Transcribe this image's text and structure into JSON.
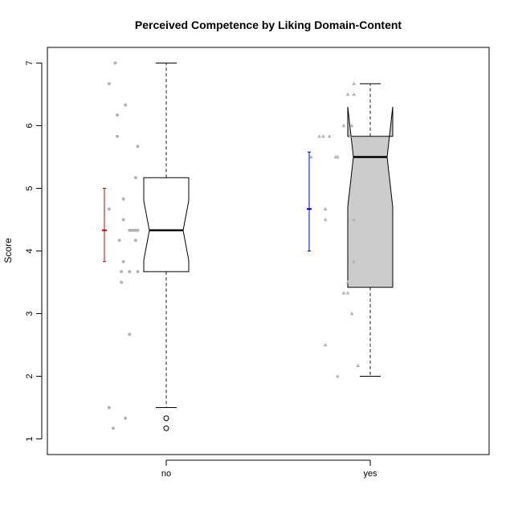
{
  "chart_data": {
    "type": "boxplot",
    "title": "Perceived Competence by Liking Domain-Content",
    "xlabel": "",
    "ylabel": "Score",
    "categories": [
      "no",
      "yes"
    ],
    "ylim": [
      0.75,
      7.25
    ],
    "yticks": [
      1,
      2,
      3,
      4,
      5,
      6,
      7
    ],
    "grid": false,
    "notched": true,
    "colors": {
      "no_fill": "#ffffff",
      "yes_fill": "#cccccc",
      "no_ci": "#cc0000",
      "yes_ci": "#0000cc",
      "points": "#b3b3b3",
      "box_border": "#000000",
      "whisker": "#666666"
    },
    "groups": [
      {
        "category": "no",
        "box": {
          "q1": 3.67,
          "median": 4.33,
          "q3": 5.17,
          "whisker_low": 1.5,
          "whisker_high": 7.0,
          "notch_low": 3.85,
          "notch_high": 4.8
        },
        "outliers": [
          1.33,
          1.17
        ],
        "mean_ci": {
          "mean": 4.33,
          "low": 3.83,
          "high": 5.0
        },
        "points": [
          {
            "offset": -0.25,
            "y": 7.0
          },
          {
            "offset": -0.28,
            "y": 6.67
          },
          {
            "offset": -0.24,
            "y": 6.17
          },
          {
            "offset": -0.24,
            "y": 5.83
          },
          {
            "offset": -0.2,
            "y": 6.33
          },
          {
            "offset": -0.14,
            "y": 5.67
          },
          {
            "offset": -0.15,
            "y": 5.17
          },
          {
            "offset": -0.28,
            "y": 4.67
          },
          {
            "offset": -0.21,
            "y": 4.83
          },
          {
            "offset": -0.21,
            "y": 4.5
          },
          {
            "offset": -0.23,
            "y": 4.17
          },
          {
            "offset": -0.18,
            "y": 4.33
          },
          {
            "offset": -0.17,
            "y": 4.33
          },
          {
            "offset": -0.16,
            "y": 4.33
          },
          {
            "offset": -0.15,
            "y": 4.33
          },
          {
            "offset": -0.14,
            "y": 4.33
          },
          {
            "offset": -0.15,
            "y": 4.17
          },
          {
            "offset": -0.21,
            "y": 3.83
          },
          {
            "offset": -0.22,
            "y": 3.67
          },
          {
            "offset": -0.18,
            "y": 3.67
          },
          {
            "offset": -0.14,
            "y": 3.67
          },
          {
            "offset": -0.22,
            "y": 3.5
          },
          {
            "offset": -0.18,
            "y": 2.67
          },
          {
            "offset": -0.28,
            "y": 1.5
          },
          {
            "offset": -0.2,
            "y": 1.33
          },
          {
            "offset": -0.26,
            "y": 1.17
          }
        ]
      },
      {
        "category": "yes",
        "box": {
          "q1": 3.42,
          "median": 5.5,
          "q3": 5.83,
          "whisker_low": 2.0,
          "whisker_high": 6.67,
          "notch_low": 4.7,
          "notch_high": 6.3
        },
        "outliers": [],
        "mean_ci": {
          "mean": 4.67,
          "low": 4.0,
          "high": 5.58
        },
        "points": [
          {
            "offset": -0.08,
            "y": 6.67
          },
          {
            "offset": -0.11,
            "y": 6.5
          },
          {
            "offset": -0.08,
            "y": 6.5
          },
          {
            "offset": -0.13,
            "y": 6.0
          },
          {
            "offset": -0.09,
            "y": 6.0
          },
          {
            "offset": -0.25,
            "y": 5.83
          },
          {
            "offset": -0.23,
            "y": 5.83
          },
          {
            "offset": -0.2,
            "y": 5.83
          },
          {
            "offset": -0.1,
            "y": 5.83
          },
          {
            "offset": -0.29,
            "y": 5.5
          },
          {
            "offset": -0.17,
            "y": 5.5
          },
          {
            "offset": -0.16,
            "y": 5.5
          },
          {
            "offset": -0.22,
            "y": 4.67
          },
          {
            "offset": -0.22,
            "y": 4.5
          },
          {
            "offset": -0.08,
            "y": 4.5
          },
          {
            "offset": -0.08,
            "y": 3.83
          },
          {
            "offset": -0.11,
            "y": 3.5
          },
          {
            "offset": -0.13,
            "y": 3.33
          },
          {
            "offset": -0.11,
            "y": 3.33
          },
          {
            "offset": -0.09,
            "y": 3.0
          },
          {
            "offset": -0.22,
            "y": 2.5
          },
          {
            "offset": -0.06,
            "y": 2.17
          },
          {
            "offset": -0.16,
            "y": 2.0
          }
        ]
      }
    ]
  }
}
